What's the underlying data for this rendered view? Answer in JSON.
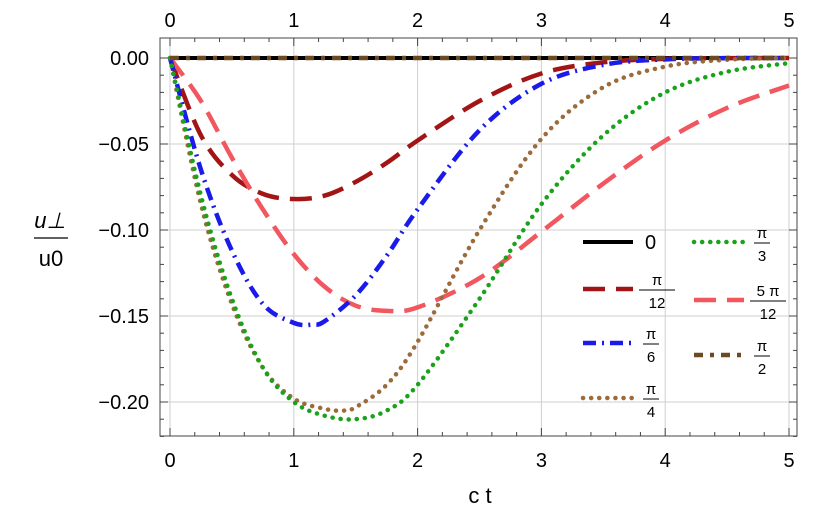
{
  "chart_data": {
    "type": "line",
    "xlabel": "c t",
    "ylabel": {
      "numerator": "u⊥",
      "denominator": "u0"
    },
    "xlim": [
      0,
      5
    ],
    "ylim": [
      -0.225,
      0.01
    ],
    "x_ticks": [
      0,
      1,
      2,
      3,
      4,
      5
    ],
    "x_tick_labels": [
      "0",
      "1",
      "2",
      "3",
      "4",
      "5"
    ],
    "y_ticks": [
      0.0,
      -0.05,
      -0.1,
      -0.15,
      -0.2
    ],
    "y_tick_labels": [
      "0.00",
      "−0.05",
      "−0.10",
      "−0.15",
      "−0.20"
    ],
    "grid": true,
    "frame_ticks_top": true,
    "legend_position": "center-right",
    "series": [
      {
        "name": "0",
        "label": {
          "kind": "plain",
          "text": "0"
        },
        "color": "#000000",
        "dash": "solid",
        "x": [
          0,
          0.5,
          1,
          1.5,
          2,
          2.5,
          3,
          3.5,
          4,
          4.5,
          5
        ],
        "y": [
          0,
          0,
          0,
          0,
          0,
          0,
          0,
          0,
          0,
          0,
          0
        ]
      },
      {
        "name": "π/12",
        "label": {
          "kind": "frac",
          "num": "π",
          "den": "12"
        },
        "color": "#a31515",
        "dash": "long-dash",
        "x": [
          0,
          0.25,
          0.5,
          0.75,
          1.0,
          1.25,
          1.5,
          1.75,
          2.0,
          2.5,
          3.0,
          3.5,
          4.0,
          4.5,
          5.0
        ],
        "y": [
          0,
          -0.045,
          -0.068,
          -0.079,
          -0.082,
          -0.08,
          -0.072,
          -0.061,
          -0.048,
          -0.025,
          -0.009,
          -0.0025,
          -0.0005,
          -0.0001,
          0
        ]
      },
      {
        "name": "5π/12",
        "label": {
          "kind": "frac",
          "num": "5 π",
          "den": "12"
        },
        "color": "#f2565f",
        "dash": "long-dash",
        "x": [
          0,
          0.25,
          0.5,
          0.75,
          1.0,
          1.25,
          1.5,
          1.75,
          2.0,
          2.5,
          3.0,
          3.5,
          4.0,
          4.5,
          5.0
        ],
        "y": [
          0,
          -0.025,
          -0.058,
          -0.088,
          -0.114,
          -0.133,
          -0.144,
          -0.147,
          -0.145,
          -0.128,
          -0.101,
          -0.073,
          -0.048,
          -0.029,
          -0.016
        ]
      },
      {
        "name": "π/6",
        "label": {
          "kind": "frac",
          "num": "π",
          "den": "6"
        },
        "color": "#1a1aeb",
        "dash": "dash-dot",
        "x": [
          0,
          0.25,
          0.5,
          0.75,
          1.0,
          1.15,
          1.25,
          1.5,
          1.75,
          2.0,
          2.5,
          3.0,
          3.5,
          4.0,
          4.5,
          5.0
        ],
        "y": [
          0,
          -0.065,
          -0.112,
          -0.143,
          -0.154,
          -0.155,
          -0.153,
          -0.138,
          -0.115,
          -0.088,
          -0.042,
          -0.015,
          -0.004,
          -0.0008,
          -0.0001,
          0
        ]
      },
      {
        "name": "π/4",
        "label": {
          "kind": "frac",
          "num": "π",
          "den": "4"
        },
        "color": "#9c6b3c",
        "dash": "dotted",
        "x": [
          0,
          0.25,
          0.5,
          0.75,
          1.0,
          1.25,
          1.4,
          1.5,
          1.75,
          2.0,
          2.5,
          3.0,
          3.5,
          4.0,
          4.5,
          5.0
        ],
        "y": [
          0,
          -0.085,
          -0.143,
          -0.18,
          -0.198,
          -0.204,
          -0.205,
          -0.203,
          -0.19,
          -0.165,
          -0.1,
          -0.047,
          -0.017,
          -0.005,
          -0.001,
          0
        ]
      },
      {
        "name": "π/3",
        "label": {
          "kind": "frac",
          "num": "π",
          "den": "3"
        },
        "color": "#1aa31a",
        "dash": "dotted",
        "x": [
          0,
          0.25,
          0.5,
          0.75,
          1.0,
          1.25,
          1.5,
          1.75,
          2.0,
          2.5,
          3.0,
          3.5,
          4.0,
          4.5,
          5.0
        ],
        "y": [
          0,
          -0.08,
          -0.14,
          -0.18,
          -0.2,
          -0.208,
          -0.21,
          -0.205,
          -0.19,
          -0.14,
          -0.085,
          -0.045,
          -0.02,
          -0.008,
          -0.003
        ]
      },
      {
        "name": "π/2",
        "label": {
          "kind": "frac",
          "num": "π",
          "den": "2"
        },
        "color": "#6b4a22",
        "dash": "dash-dot-brown",
        "x": [
          0,
          0.5,
          1,
          1.5,
          2,
          2.5,
          3,
          3.5,
          4,
          4.5,
          5
        ],
        "y": [
          0,
          0,
          0,
          0,
          0,
          0,
          0,
          0,
          0,
          0,
          0
        ]
      }
    ]
  }
}
